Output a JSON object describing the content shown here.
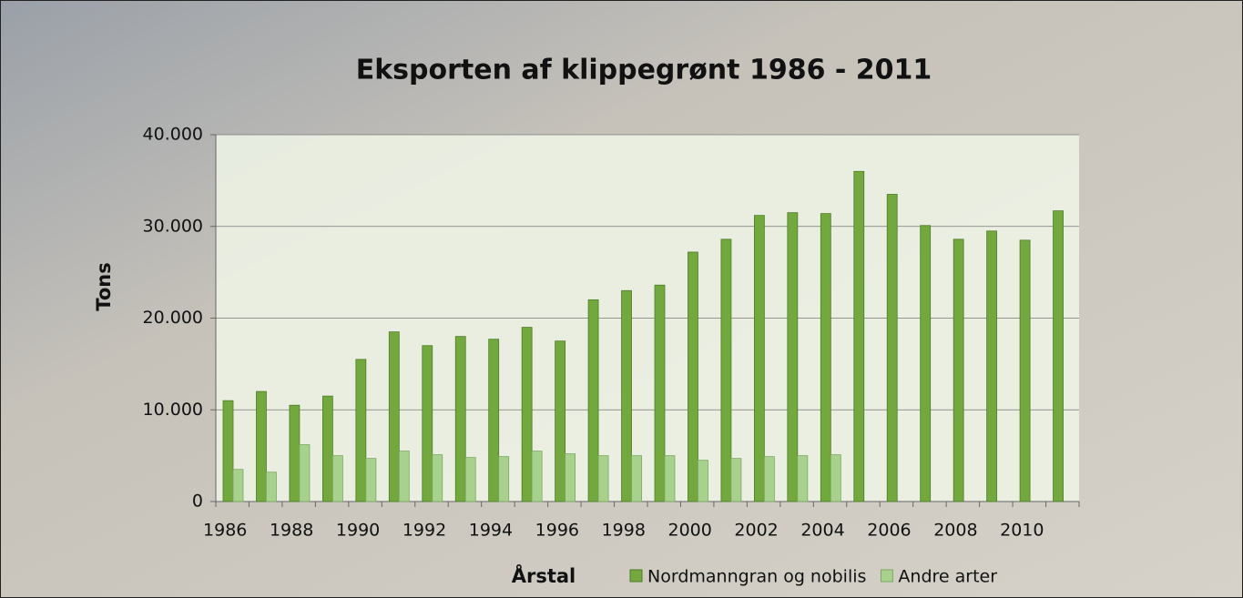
{
  "chart_data": {
    "type": "bar",
    "title": "Eksporten af klippegrønt 1986 - 2011",
    "y_label": "Tons",
    "x_label": "Årstal",
    "categories": [
      "1986",
      null,
      "1988",
      null,
      "1990",
      null,
      "1992",
      null,
      "1994",
      null,
      "1996",
      null,
      "1998",
      null,
      "2000",
      null,
      "2002",
      null,
      "2004",
      null,
      "2006",
      null,
      "2008",
      null,
      "2010",
      null
    ],
    "series": [
      {
        "name": "Nordmanngran og nobilis",
        "color": "#72a83e",
        "values": [
          11000,
          12000,
          10500,
          11500,
          15500,
          18500,
          17000,
          18000,
          17700,
          19000,
          17500,
          22000,
          23000,
          23600,
          27200,
          28600,
          31200,
          31500,
          31400,
          36000,
          33500,
          30100,
          28600,
          29500,
          28500,
          31700
        ]
      },
      {
        "name": "Andre arter",
        "color": "#a9d18e",
        "values": [
          3500,
          3200,
          6200,
          5000,
          4700,
          5500,
          5100,
          4800,
          4900,
          5500,
          5200,
          5000,
          5000,
          5000,
          4500,
          4700,
          4900,
          5000,
          5100,
          null,
          null,
          null,
          null,
          null,
          null,
          null
        ]
      }
    ],
    "ylim": [
      0,
      40000
    ],
    "yticks": [
      0,
      {
        "value": 10000,
        "label": "10.000"
      },
      {
        "value": 20000,
        "label": "20.000"
      },
      {
        "value": 30000,
        "label": "30.000"
      },
      {
        "value": 40000,
        "label": "40.000"
      }
    ],
    "grid": true,
    "legend": "bottom"
  }
}
